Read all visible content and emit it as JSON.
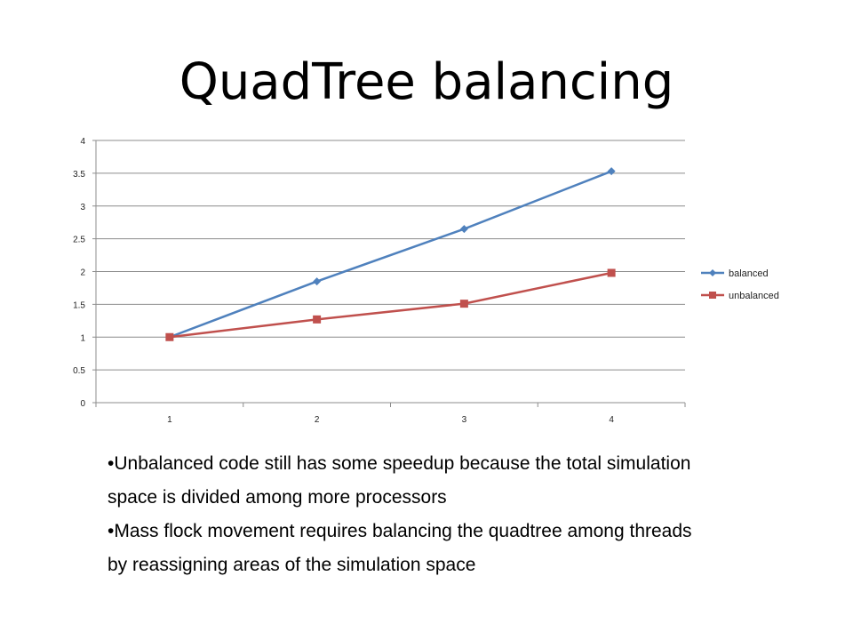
{
  "slide": {
    "title": "QuadTree balancing"
  },
  "bullets": [
    "•Unbalanced code still has some speedup because the total simulation space is divided among more processors",
    "•Mass flock movement requires balancing the quadtree among threads by reassigning areas of the simulation space"
  ],
  "chart_data": {
    "type": "line",
    "categories": [
      "1",
      "2",
      "3",
      "4"
    ],
    "series": [
      {
        "name": "balanced",
        "values": [
          1.0,
          1.85,
          2.65,
          3.53
        ],
        "color": "#4F81BD",
        "marker": "diamond"
      },
      {
        "name": "unbalanced",
        "values": [
          1.0,
          1.27,
          1.51,
          1.98
        ],
        "color": "#C0504D",
        "marker": "square"
      }
    ],
    "ylim": [
      0,
      4
    ],
    "yticks": [
      "0",
      "0.5",
      "1",
      "1.5",
      "2",
      "2.5",
      "3",
      "3.5",
      "4"
    ],
    "grid": true,
    "legend_position": "right"
  }
}
